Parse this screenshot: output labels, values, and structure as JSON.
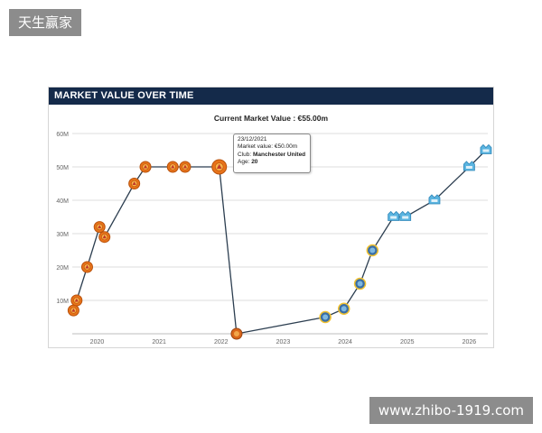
{
  "watermarks": {
    "top_left": "天生赢家",
    "bottom_right": "www.zhibo-1919.com"
  },
  "panel": {
    "header": "MARKET VALUE OVER TIME"
  },
  "tooltip": {
    "date": "23/12/2021",
    "market_label": "Market value:",
    "market_value": "€50.00m",
    "club_label": "Club:",
    "club_value": "Manchester United",
    "age_label": "Age:",
    "age_value": "20"
  },
  "colors": {
    "header_bg": "#142a4a",
    "line": "#2c3e50",
    "club_a_marker": "#e8731a",
    "club_b_marker": "#5ab4e0"
  },
  "chart_data": {
    "type": "line",
    "title": "Current Market Value : €55.00m",
    "y_ticks": [
      "10M",
      "20M",
      "30M",
      "40M",
      "50M",
      "60M"
    ],
    "x_ticks": [
      "2020",
      "2021",
      "2022",
      "2023",
      "2024",
      "2025",
      "2026"
    ],
    "ylim": [
      0,
      60
    ],
    "xlim": [
      2019.6,
      2026.3
    ],
    "grid": true,
    "series": [
      {
        "marker": "club-a-crest",
        "points": [
          {
            "x": 2019.62,
            "y": 7
          },
          {
            "x": 2019.67,
            "y": 10
          },
          {
            "x": 2019.84,
            "y": 20
          },
          {
            "x": 2020.04,
            "y": 32
          },
          {
            "x": 2020.12,
            "y": 29
          },
          {
            "x": 2020.6,
            "y": 45
          },
          {
            "x": 2020.78,
            "y": 50
          },
          {
            "x": 2021.22,
            "y": 50
          },
          {
            "x": 2021.42,
            "y": 50
          },
          {
            "x": 2021.97,
            "y": 50
          }
        ]
      },
      {
        "marker": "transition",
        "points": [
          {
            "x": 2022.25,
            "y": 0
          }
        ]
      },
      {
        "marker": "club-b-crest",
        "points": [
          {
            "x": 2023.68,
            "y": 5
          },
          {
            "x": 2023.98,
            "y": 7.5
          },
          {
            "x": 2024.24,
            "y": 15
          },
          {
            "x": 2024.44,
            "y": 25
          },
          {
            "x": 2024.78,
            "y": 35
          },
          {
            "x": 2024.97,
            "y": 35
          },
          {
            "x": 2025.44,
            "y": 40
          },
          {
            "x": 2026.0,
            "y": 50
          },
          {
            "x": 2026.27,
            "y": 55
          }
        ]
      }
    ]
  }
}
